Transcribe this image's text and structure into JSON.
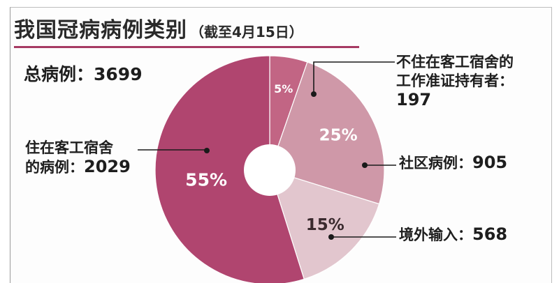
{
  "title": "我国冠病病例类别",
  "subtitle": "（截至4月15日）",
  "total": {
    "label": "总病例：",
    "value": "3699"
  },
  "colors": {
    "dorm": "#b0456f",
    "non_dorm": "#c26584",
    "community": "#cf98a8",
    "imported": "#e2c6ce",
    "accent_rule": "#a63a63"
  },
  "chart_data": {
    "type": "pie",
    "title": "我国冠病病例类别",
    "subtitle": "（截至4月15日）",
    "total": 3699,
    "slices": [
      {
        "key": "non_dorm",
        "label_lines": [
          "不住在客工宿舍的",
          "工作准证持有者："
        ],
        "value": 197,
        "percent_label": "5%"
      },
      {
        "key": "community",
        "label_lines": [
          "社区病例："
        ],
        "value": 905,
        "percent_label": "25%"
      },
      {
        "key": "imported",
        "label_lines": [
          "境外输入："
        ],
        "value": 568,
        "percent_label": "15%"
      },
      {
        "key": "dorm",
        "label_lines": [
          "住在客工宿舍",
          "的病例："
        ],
        "value": 2029,
        "percent_label": "55%"
      }
    ]
  }
}
